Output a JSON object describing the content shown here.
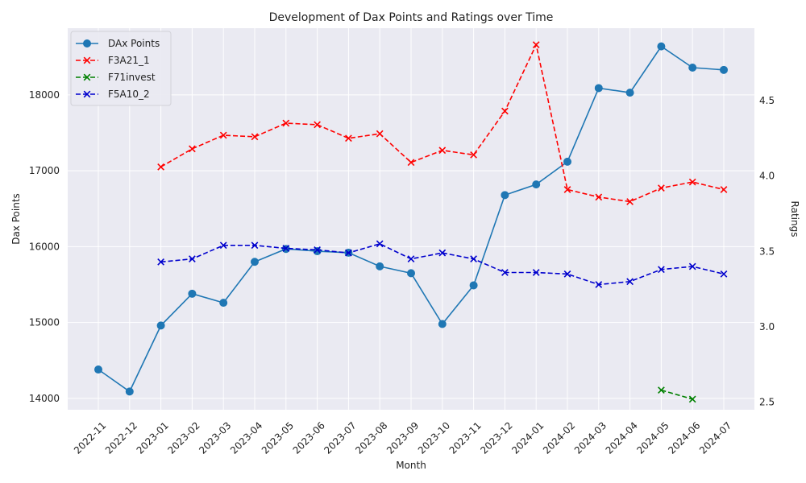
{
  "chart_data": {
    "type": "line",
    "title": "Development of Dax Points and Ratings over Time",
    "xlabel": "Month",
    "ylabel_left": "Dax Points",
    "ylabel_right": "Ratings",
    "grid": true,
    "legend_position": "top-left",
    "x": [
      "2022-11",
      "2022-12",
      "2023-01",
      "2023-02",
      "2023-03",
      "2023-04",
      "2023-05",
      "2023-06",
      "2023-07",
      "2023-08",
      "2023-09",
      "2023-10",
      "2023-11",
      "2023-12",
      "2024-01",
      "2024-02",
      "2024-03",
      "2024-04",
      "2024-05",
      "2024-06",
      "2024-07"
    ],
    "ylim_left": [
      13850,
      18880
    ],
    "yticks_left": [
      14000,
      15000,
      16000,
      17000,
      18000
    ],
    "ylim_right": [
      2.45,
      4.98
    ],
    "yticks_right": [
      2.5,
      3.0,
      3.5,
      4.0,
      4.5
    ],
    "series": [
      {
        "name": "DAx Points",
        "axis": "left",
        "color": "#1f77b4",
        "style": "solid",
        "marker": "circle",
        "values": [
          14380,
          14090,
          14960,
          15380,
          15260,
          15800,
          15970,
          15940,
          15920,
          15740,
          15650,
          14980,
          15490,
          16680,
          16820,
          17120,
          18090,
          18030,
          18640,
          18360,
          18330
        ]
      },
      {
        "name": "F3A21_1",
        "axis": "right",
        "color": "#ff0000",
        "style": "dashed",
        "marker": "x",
        "values": [
          null,
          null,
          4.06,
          4.18,
          4.27,
          4.26,
          4.35,
          4.34,
          4.25,
          4.28,
          4.09,
          4.17,
          4.14,
          4.43,
          4.87,
          3.91,
          3.86,
          3.83,
          3.92,
          3.96,
          3.91
        ]
      },
      {
        "name": "F71invest",
        "axis": "right",
        "color": "#008000",
        "style": "dashed",
        "marker": "x",
        "values": [
          null,
          null,
          null,
          null,
          null,
          null,
          null,
          null,
          null,
          null,
          null,
          null,
          null,
          null,
          null,
          null,
          null,
          null,
          2.58,
          2.52,
          null
        ]
      },
      {
        "name": "F5A10_2",
        "axis": "right",
        "color": "#0000cd",
        "style": "dashed",
        "marker": "x",
        "values": [
          null,
          null,
          3.43,
          3.45,
          3.54,
          3.54,
          3.52,
          3.51,
          3.49,
          3.55,
          3.45,
          3.49,
          3.45,
          3.36,
          3.36,
          3.35,
          3.28,
          3.3,
          3.38,
          3.4,
          3.35
        ]
      }
    ]
  }
}
